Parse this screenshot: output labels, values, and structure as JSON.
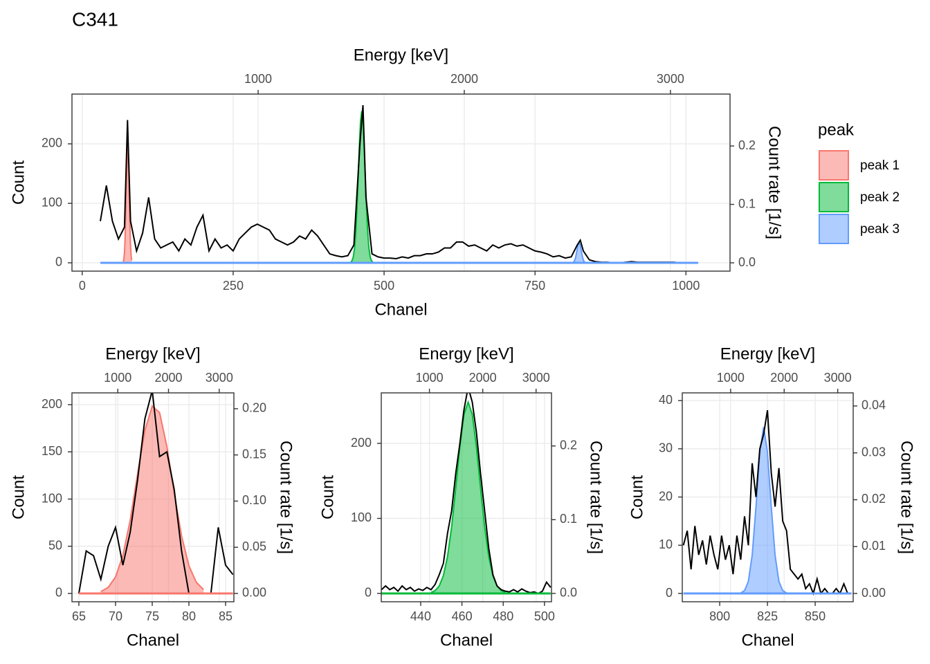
{
  "title": "C341",
  "chart_data": [
    {
      "type": "line",
      "xlabel": "Chanel",
      "ylabel": "Count",
      "x2label": "Energy [keV]",
      "y2label": "Count rate [1/s]",
      "legend_title": "peak",
      "grid": true,
      "line_color": "#000000",
      "xlim": [
        -17,
        1073
      ],
      "xticks": [
        0,
        250,
        500,
        750,
        1000
      ],
      "ylim": [
        -14,
        283.7
      ],
      "yticks": [
        0,
        100,
        200
      ],
      "x2lim": [
        97,
        3289
      ],
      "x2ticks": [
        1000,
        2000,
        3000
      ],
      "y2lim": [
        -0.0142,
        0.2888
      ],
      "y2ticks": [
        {
          "value": 0,
          "label": "0.0"
        },
        0.1,
        0.2
      ],
      "x": [
        30,
        40,
        50,
        60,
        70,
        75,
        80,
        90,
        100,
        110,
        120,
        130,
        140,
        150,
        160,
        170,
        180,
        190,
        200,
        210,
        220,
        230,
        240,
        250,
        260,
        270,
        280,
        290,
        300,
        310,
        320,
        330,
        340,
        350,
        360,
        370,
        380,
        390,
        400,
        410,
        420,
        430,
        440,
        450,
        460,
        465,
        470,
        480,
        490,
        500,
        510,
        520,
        530,
        540,
        550,
        560,
        570,
        580,
        590,
        600,
        610,
        620,
        630,
        640,
        650,
        660,
        670,
        680,
        690,
        700,
        710,
        720,
        730,
        740,
        750,
        760,
        770,
        780,
        790,
        800,
        810,
        820,
        825,
        830,
        840,
        850,
        860,
        870,
        880,
        890,
        900,
        910,
        920,
        930,
        940,
        950,
        960,
        970,
        980,
        990,
        1000,
        1010,
        1020
      ],
      "values": [
        70,
        130,
        70,
        40,
        60,
        240,
        70,
        20,
        50,
        110,
        40,
        25,
        30,
        35,
        20,
        40,
        30,
        60,
        80,
        20,
        40,
        25,
        30,
        20,
        40,
        50,
        60,
        65,
        60,
        55,
        40,
        35,
        30,
        35,
        45,
        40,
        55,
        45,
        30,
        15,
        12,
        10,
        12,
        30,
        200,
        265,
        110,
        15,
        10,
        8,
        8,
        7,
        10,
        8,
        12,
        12,
        15,
        15,
        18,
        25,
        25,
        35,
        35,
        28,
        30,
        25,
        20,
        30,
        25,
        30,
        32,
        28,
        30,
        25,
        20,
        18,
        15,
        10,
        12,
        8,
        10,
        30,
        38,
        20,
        5,
        2,
        1,
        1,
        0,
        0,
        1,
        2,
        1,
        1,
        1,
        1,
        1,
        1,
        1,
        0,
        0,
        0,
        0
      ],
      "series": [
        {
          "name": "peak 1",
          "color": "#F8766D",
          "x": [
            68,
            69,
            70,
            71,
            72,
            73,
            74,
            75,
            76,
            77,
            78,
            79,
            80,
            81,
            82
          ],
          "values": [
            2,
            6.4,
            17.5,
            40.2,
            77.7,
            126.4,
            172.7,
            198.4,
            191.7,
            155.6,
            106.2,
            60.9,
            29.4,
            11.9,
            4.1
          ]
        },
        {
          "name": "peak 2",
          "color": "#00BA38",
          "x": [
            445,
            447,
            449,
            451,
            453,
            455,
            457,
            459,
            461,
            463,
            465,
            467,
            469,
            471,
            473,
            475,
            477,
            479,
            481
          ],
          "values": [
            1.2,
            3.7,
            10,
            23.6,
            48.8,
            88.5,
            140.6,
            195.8,
            238.7,
            255,
            238.7,
            195.8,
            140.6,
            88.5,
            48.8,
            23.6,
            10,
            3.7,
            1.2
          ]
        },
        {
          "name": "peak 3",
          "color": "#619CFF",
          "x": [
            811,
            813,
            815,
            817,
            819,
            821,
            823,
            825,
            827,
            829,
            831,
            833,
            835
          ],
          "values": [
            0.1,
            0.6,
            2.5,
            7.9,
            18,
            29.3,
            34.5,
            29.3,
            18,
            7.9,
            2.5,
            0.6,
            0.1
          ]
        }
      ]
    },
    {
      "type": "line",
      "xlabel": "Chanel",
      "ylabel": "Count",
      "x2label": "Energy [keV]",
      "y2label": "Count rate [1/s]",
      "grid": true,
      "line_color": "#000000",
      "xlim": [
        64.06,
        86.13
      ],
      "xticks": [
        65,
        70,
        75,
        80,
        85
      ],
      "ylim": [
        -8.8,
        212.5
      ],
      "yticks": [
        0,
        50,
        100,
        150,
        200
      ],
      "x2lim": [
        97,
        3289
      ],
      "x2ticks": [
        1000,
        2000,
        3000
      ],
      "y2lim": [
        -0.009,
        0.2172
      ],
      "y2ticks": [
        {
          "value": 0,
          "label": "0.00"
        },
        0.05,
        {
          "value": 0.1,
          "label": "0.10"
        },
        0.15,
        {
          "value": 0.2,
          "label": "0.20"
        }
      ],
      "x": [
        65,
        66,
        67,
        68,
        69,
        70,
        71,
        72,
        73,
        74,
        75,
        76,
        77,
        78,
        79,
        80,
        81,
        82,
        83,
        84,
        85,
        86
      ],
      "values": [
        0,
        45,
        40,
        15,
        50,
        70,
        30,
        65,
        120,
        185,
        215,
        145,
        150,
        110,
        45,
        0,
        0,
        0,
        0,
        70,
        30,
        20
      ],
      "series": [
        {
          "color": "#F8766D",
          "x": [
            68,
            69,
            70,
            71,
            72,
            73,
            74,
            75,
            76,
            77,
            78,
            79,
            80,
            81,
            82
          ],
          "values": [
            2,
            6.4,
            17.5,
            40.2,
            77.7,
            126.4,
            172.7,
            198.4,
            191.7,
            155.6,
            106.2,
            60.9,
            29.4,
            11.9,
            4.1
          ]
        }
      ]
    },
    {
      "type": "line",
      "xlabel": "Chanel",
      "ylabel": "Count",
      "x2label": "Energy [keV]",
      "y2label": "Count rate [1/s]",
      "grid": true,
      "line_color": "#000000",
      "xlim": [
        420.9,
        503.4
      ],
      "xticks": [
        440,
        460,
        480,
        500
      ],
      "ylim": [
        -11.1,
        267.3
      ],
      "yticks": [
        0,
        100,
        200
      ],
      "x2lim": [
        97,
        3289
      ],
      "x2ticks": [
        1000,
        2000,
        3000
      ],
      "y2lim": [
        -0.0113,
        0.272
      ],
      "y2ticks": [
        {
          "value": 0,
          "label": "0.0"
        },
        0.1,
        0.2
      ],
      "x": [
        421,
        423,
        425,
        427,
        429,
        431,
        433,
        435,
        437,
        439,
        441,
        443,
        445,
        447,
        449,
        451,
        453,
        455,
        457,
        459,
        461,
        463,
        465,
        467,
        469,
        471,
        473,
        475,
        477,
        479,
        481,
        483,
        485,
        487,
        489,
        491,
        493,
        495,
        497,
        499,
        501,
        503
      ],
      "values": [
        5,
        10,
        5,
        8,
        3,
        10,
        5,
        8,
        3,
        6,
        4,
        8,
        5,
        12,
        25,
        40,
        80,
        110,
        160,
        200,
        245,
        275,
        255,
        215,
        160,
        110,
        60,
        25,
        10,
        5,
        3,
        2,
        5,
        2,
        6,
        3,
        1,
        2,
        0,
        3,
        15,
        8
      ],
      "series": [
        {
          "color": "#00BA38",
          "x": [
            445,
            447,
            449,
            451,
            453,
            455,
            457,
            459,
            461,
            463,
            465,
            467,
            469,
            471,
            473,
            475,
            477,
            479,
            481
          ],
          "values": [
            1.2,
            3.7,
            10,
            23.6,
            48.8,
            88.5,
            140.6,
            195.8,
            238.7,
            255,
            238.7,
            195.8,
            140.6,
            88.5,
            48.8,
            23.6,
            10,
            3.7,
            1.2
          ]
        }
      ]
    },
    {
      "type": "line",
      "xlabel": "Chanel",
      "ylabel": "Count",
      "x2label": "Energy [keV]",
      "y2label": "Count rate [1/s]",
      "grid": true,
      "line_color": "#000000",
      "xlim": [
        780.4,
        869.9
      ],
      "xticks": [
        800,
        825,
        850
      ],
      "ylim": [
        -1.72,
        41.6
      ],
      "yticks": [
        0,
        10,
        20,
        30,
        40
      ],
      "x2lim": [
        97,
        3289
      ],
      "x2ticks": [
        1000,
        2000,
        3000
      ],
      "y2lim": [
        -0.00177,
        0.0428
      ],
      "y2ticks": [
        {
          "value": 0,
          "label": "0.00"
        },
        0.01,
        0.02,
        0.03,
        0.04
      ],
      "x": [
        781,
        783,
        785,
        787,
        789,
        791,
        793,
        795,
        797,
        799,
        801,
        803,
        805,
        807,
        809,
        811,
        813,
        815,
        817,
        819,
        821,
        823,
        825,
        827,
        829,
        831,
        833,
        835,
        837,
        839,
        841,
        843,
        845,
        847,
        849,
        851,
        853,
        855,
        857,
        859,
        861,
        863,
        865,
        867,
        869
      ],
      "values": [
        10,
        13,
        5,
        14,
        8,
        11,
        6,
        12,
        8,
        5,
        12,
        7,
        10,
        4,
        12,
        7,
        16,
        10,
        27,
        20,
        30,
        33,
        38,
        25,
        18,
        26,
        15,
        13,
        5,
        4,
        3,
        4,
        1,
        2,
        0,
        3,
        0,
        1,
        0,
        0,
        1,
        0,
        2,
        0,
        0
      ],
      "series": [
        {
          "color": "#619CFF",
          "x": [
            811,
            813,
            815,
            817,
            819,
            821,
            823,
            825,
            827,
            829,
            831,
            833,
            835
          ],
          "values": [
            0.1,
            0.6,
            2.5,
            7.9,
            18,
            29.3,
            34.5,
            29.3,
            18,
            7.9,
            2.5,
            0.6,
            0.1
          ]
        }
      ]
    }
  ]
}
